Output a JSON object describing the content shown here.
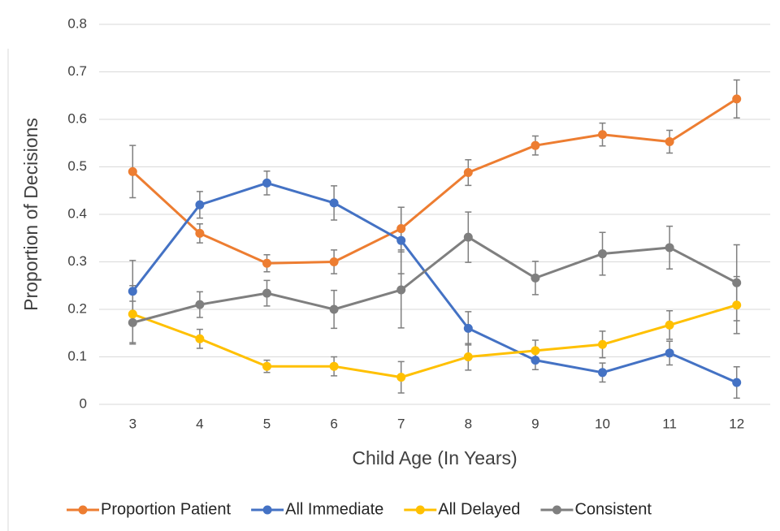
{
  "chart_data": {
    "type": "line",
    "x_label": "Child Age (In Years)",
    "y_label": "Proportion of Decisions",
    "categories": [
      "3",
      "4",
      "5",
      "6",
      "7",
      "8",
      "9",
      "10",
      "11",
      "12"
    ],
    "series": [
      {
        "name": "Proportion Patient",
        "color": "#ed7d31",
        "values": [
          0.49,
          0.36,
          0.297,
          0.3,
          0.37,
          0.488,
          0.545,
          0.568,
          0.553,
          0.643
        ],
        "errors": [
          0.055,
          0.02,
          0.018,
          0.025,
          0.045,
          0.027,
          0.02,
          0.024,
          0.024,
          0.04
        ]
      },
      {
        "name": "All Immediate",
        "color": "#4472c4",
        "values": [
          0.238,
          0.42,
          0.466,
          0.424,
          0.345,
          0.16,
          0.093,
          0.067,
          0.108,
          0.046
        ],
        "errors": [
          0.065,
          0.028,
          0.025,
          0.036,
          0.07,
          0.035,
          0.02,
          0.02,
          0.025,
          0.033
        ]
      },
      {
        "name": "All Delayed",
        "color": "#ffc000",
        "values": [
          0.19,
          0.138,
          0.08,
          0.08,
          0.057,
          0.1,
          0.113,
          0.126,
          0.167,
          0.209
        ],
        "errors": [
          0.06,
          0.02,
          0.013,
          0.02,
          0.033,
          0.028,
          0.022,
          0.028,
          0.03,
          0.06
        ]
      },
      {
        "name": "Consistent",
        "color": "#7f7f7f",
        "values": [
          0.172,
          0.21,
          0.234,
          0.2,
          0.241,
          0.352,
          0.266,
          0.317,
          0.33,
          0.256
        ],
        "errors": [
          0.045,
          0.027,
          0.027,
          0.04,
          0.08,
          0.053,
          0.035,
          0.045,
          0.045,
          0.08
        ]
      }
    ],
    "error_bar_color": "#7f7f7f",
    "ylim": [
      0,
      0.8
    ],
    "yticks": [
      0,
      0.1,
      0.2,
      0.3,
      0.4,
      0.5,
      0.6,
      0.7,
      0.8
    ],
    "grid": true,
    "legend": "bottom"
  }
}
